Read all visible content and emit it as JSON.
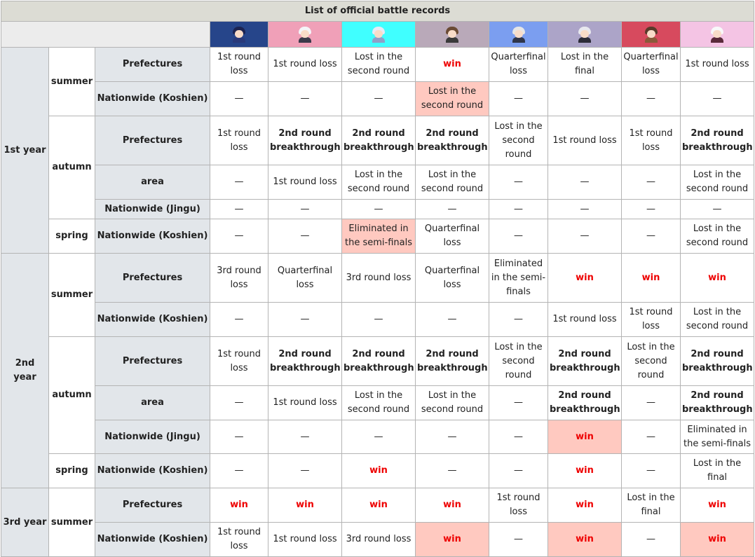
{
  "title": "List of official battle records",
  "columns": [
    {
      "icon": "character-1-icon",
      "bg": "#26458a",
      "hair": "#1c2452",
      "body": "#2a3a7a"
    },
    {
      "icon": "character-2-icon",
      "bg": "#f0a0b8",
      "hair": "#f4f4f8",
      "body": "#3a3a4a"
    },
    {
      "icon": "character-3-icon",
      "bg": "#40ffff",
      "hair": "#e8eaf6",
      "body": "#8fa0c8"
    },
    {
      "icon": "character-4-icon",
      "bg": "#b9a9b9",
      "hair": "#6a4a34",
      "body": "#3a3a3a"
    },
    {
      "icon": "character-5-icon",
      "bg": "#7b9ef0",
      "hair": "#e6e6e6",
      "body": "#30364a"
    },
    {
      "icon": "character-6-icon",
      "bg": "#aca4c8",
      "hair": "#e8e8ee",
      "body": "#2c2c38"
    },
    {
      "icon": "character-7-icon",
      "bg": "#d74a5e",
      "hair": "#5a3a2a",
      "body": "#8a5a3a"
    },
    {
      "icon": "character-8-icon",
      "bg": "#f4c4e4",
      "hair": "#f8f8fa",
      "body": "#5a2a3a"
    }
  ],
  "labels": {
    "y1": "1st year",
    "y2": "2nd year",
    "y3": "3rd year",
    "summer": "summer",
    "autumn": "autumn",
    "spring": "spring",
    "pref": "Prefectures",
    "koshien": "Nationwide (Koshien)",
    "area": "area",
    "jingu": "Nationwide (Jingu)"
  },
  "rows": [
    {
      "cells": [
        [
          "1st round loss",
          ""
        ],
        [
          "1st round loss",
          ""
        ],
        [
          "Lost in the second round",
          ""
        ],
        [
          "win",
          "win"
        ],
        [
          "Quarterfinal loss",
          ""
        ],
        [
          "Lost in the final",
          ""
        ],
        [
          "Quarterfinal loss",
          ""
        ],
        [
          "1st round loss",
          ""
        ]
      ]
    },
    {
      "cells": [
        [
          "—",
          ""
        ],
        [
          "—",
          ""
        ],
        [
          "—",
          ""
        ],
        [
          "Lost in the second round",
          "pink"
        ],
        [
          "—",
          ""
        ],
        [
          "—",
          ""
        ],
        [
          "—",
          ""
        ],
        [
          "—",
          ""
        ]
      ]
    },
    {
      "cells": [
        [
          "1st round loss",
          ""
        ],
        [
          "2nd round breakthrough",
          "bold"
        ],
        [
          "2nd round breakthrough",
          "bold"
        ],
        [
          "2nd round breakthrough",
          "bold"
        ],
        [
          "Lost in the second round",
          ""
        ],
        [
          "1st round loss",
          ""
        ],
        [
          "1st round loss",
          ""
        ],
        [
          "2nd round breakthrough",
          "bold"
        ]
      ]
    },
    {
      "cells": [
        [
          "—",
          ""
        ],
        [
          "1st round loss",
          ""
        ],
        [
          "Lost in the second round",
          ""
        ],
        [
          "Lost in the second round",
          ""
        ],
        [
          "—",
          ""
        ],
        [
          "—",
          ""
        ],
        [
          "—",
          ""
        ],
        [
          "Lost in the second round",
          ""
        ]
      ]
    },
    {
      "cells": [
        [
          "—",
          ""
        ],
        [
          "—",
          ""
        ],
        [
          "—",
          ""
        ],
        [
          "—",
          ""
        ],
        [
          "—",
          ""
        ],
        [
          "—",
          ""
        ],
        [
          "—",
          ""
        ],
        [
          "—",
          ""
        ]
      ]
    },
    {
      "cells": [
        [
          "—",
          ""
        ],
        [
          "—",
          ""
        ],
        [
          "Eliminated in the semi-finals",
          "pink"
        ],
        [
          "Quarterfinal loss",
          ""
        ],
        [
          "—",
          ""
        ],
        [
          "—",
          ""
        ],
        [
          "—",
          ""
        ],
        [
          "Lost in the second round",
          ""
        ]
      ]
    },
    {
      "cells": [
        [
          "3rd round loss",
          ""
        ],
        [
          "Quarterfinal loss",
          ""
        ],
        [
          "3rd round loss",
          ""
        ],
        [
          "Quarterfinal loss",
          ""
        ],
        [
          "Eliminated in the semi-finals",
          ""
        ],
        [
          "win",
          "win"
        ],
        [
          "win",
          "win"
        ],
        [
          "win",
          "win"
        ]
      ]
    },
    {
      "cells": [
        [
          "—",
          ""
        ],
        [
          "—",
          ""
        ],
        [
          "—",
          ""
        ],
        [
          "—",
          ""
        ],
        [
          "—",
          ""
        ],
        [
          "1st round loss",
          ""
        ],
        [
          "1st round loss",
          ""
        ],
        [
          "Lost in the second round",
          ""
        ]
      ]
    },
    {
      "cells": [
        [
          "1st round loss",
          ""
        ],
        [
          "2nd round breakthrough",
          "bold"
        ],
        [
          "2nd round breakthrough",
          "bold"
        ],
        [
          "2nd round breakthrough",
          "bold"
        ],
        [
          "Lost in the second round",
          ""
        ],
        [
          "2nd round breakthrough",
          "bold"
        ],
        [
          "Lost in the second round",
          ""
        ],
        [
          "2nd round breakthrough",
          "bold"
        ]
      ]
    },
    {
      "cells": [
        [
          "—",
          ""
        ],
        [
          "1st round loss",
          ""
        ],
        [
          "Lost in the second round",
          ""
        ],
        [
          "Lost in the second round",
          ""
        ],
        [
          "—",
          ""
        ],
        [
          "2nd round breakthrough",
          "bold"
        ],
        [
          "—",
          ""
        ],
        [
          "2nd round breakthrough",
          "bold"
        ]
      ]
    },
    {
      "cells": [
        [
          "—",
          ""
        ],
        [
          "—",
          ""
        ],
        [
          "—",
          ""
        ],
        [
          "—",
          ""
        ],
        [
          "—",
          ""
        ],
        [
          "win",
          "win pink"
        ],
        [
          "—",
          ""
        ],
        [
          "Eliminated in the semi-finals",
          ""
        ]
      ]
    },
    {
      "cells": [
        [
          "—",
          ""
        ],
        [
          "—",
          ""
        ],
        [
          "win",
          "win"
        ],
        [
          "—",
          ""
        ],
        [
          "—",
          ""
        ],
        [
          "win",
          "win"
        ],
        [
          "—",
          ""
        ],
        [
          "Lost in the final",
          ""
        ]
      ]
    },
    {
      "cells": [
        [
          "win",
          "win"
        ],
        [
          "win",
          "win"
        ],
        [
          "win",
          "win"
        ],
        [
          "win",
          "win"
        ],
        [
          "1st round loss",
          ""
        ],
        [
          "win",
          "win"
        ],
        [
          "Lost in the final",
          ""
        ],
        [
          "win",
          "win"
        ]
      ]
    },
    {
      "cells": [
        [
          "1st round loss",
          ""
        ],
        [
          "1st round loss",
          ""
        ],
        [
          "3rd round loss",
          ""
        ],
        [
          "win",
          "win pink"
        ],
        [
          "—",
          ""
        ],
        [
          "win",
          "win pink"
        ],
        [
          "—",
          ""
        ],
        [
          "win",
          "win pink"
        ]
      ]
    }
  ]
}
